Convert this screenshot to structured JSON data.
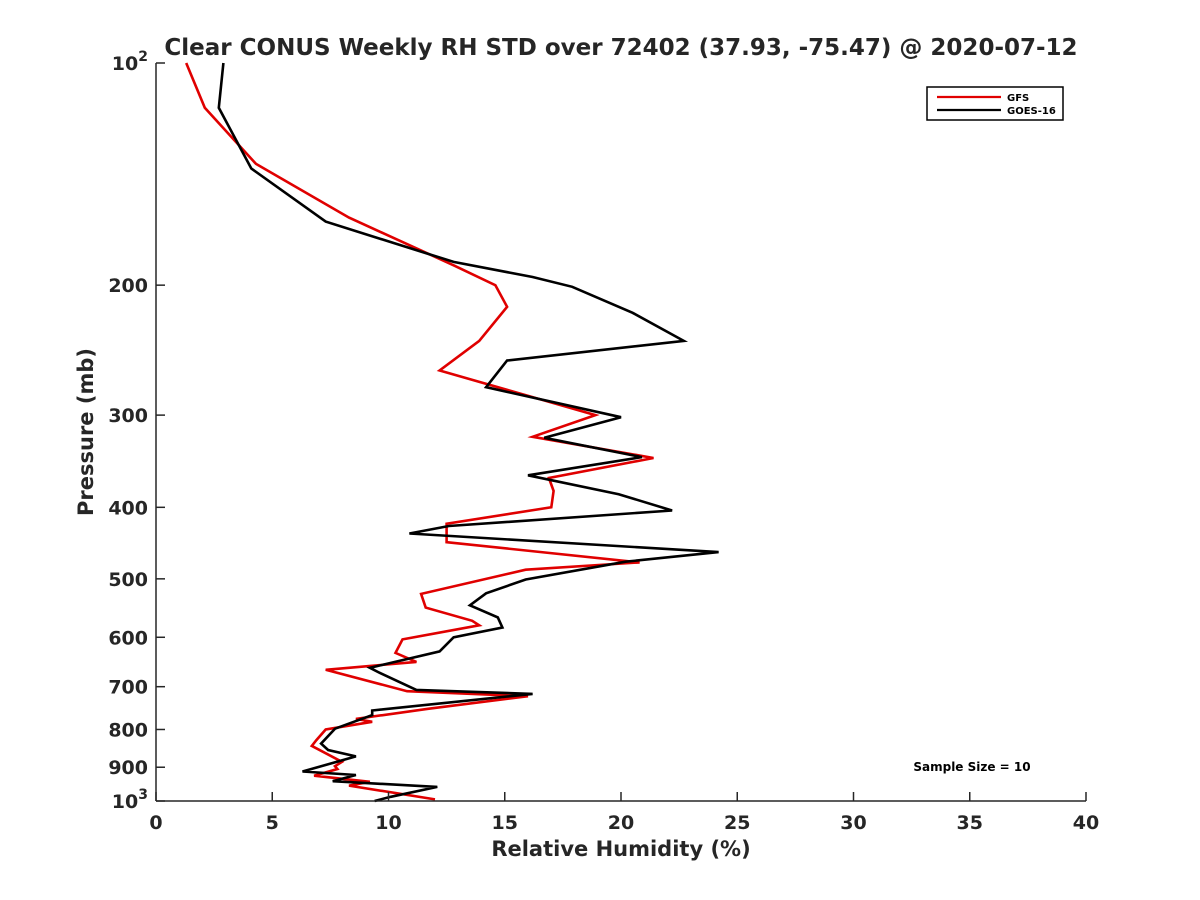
{
  "chart_data": {
    "type": "line",
    "title": "Clear CONUS Weekly RH STD over 72402 (37.93, -75.47) @ 2020-07-12",
    "xlabel": "Relative Humidity (%)",
    "ylabel": "Pressure (mb)",
    "xlim": [
      0,
      40
    ],
    "ylim": [
      100,
      1000
    ],
    "yscale": "log",
    "grid": false,
    "x_ticks": [
      0,
      5,
      10,
      15,
      20,
      25,
      30,
      35,
      40
    ],
    "x_tick_labels": [
      "0",
      "5",
      "10",
      "15",
      "20",
      "25",
      "30",
      "35",
      "40"
    ],
    "y_ticks": [
      100,
      200,
      300,
      400,
      500,
      600,
      700,
      800,
      900,
      1000
    ],
    "y_tick_labels": [
      {
        "base": "10",
        "exp": "2"
      },
      {
        "base": "200",
        "exp": ""
      },
      {
        "base": "300",
        "exp": ""
      },
      {
        "base": "400",
        "exp": ""
      },
      {
        "base": "500",
        "exp": ""
      },
      {
        "base": "600",
        "exp": ""
      },
      {
        "base": "700",
        "exp": ""
      },
      {
        "base": "800",
        "exp": ""
      },
      {
        "base": "900",
        "exp": ""
      },
      {
        "base": "10",
        "exp": "3"
      }
    ],
    "legend_position": "top-right",
    "annotation": "Sample Size = 10",
    "series": [
      {
        "name": "GFS",
        "color": "#e00000",
        "points": [
          [
            1.3,
            100
          ],
          [
            2.1,
            115
          ],
          [
            4.3,
            137
          ],
          [
            8.3,
            162
          ],
          [
            12.8,
            188
          ],
          [
            14.6,
            200
          ],
          [
            15.1,
            214
          ],
          [
            13.9,
            238
          ],
          [
            12.2,
            261
          ],
          [
            18.9,
            300
          ],
          [
            16.2,
            321
          ],
          [
            21.4,
            343
          ],
          [
            16.9,
            365
          ],
          [
            17.1,
            380
          ],
          [
            17.0,
            400
          ],
          [
            12.5,
            421
          ],
          [
            12.5,
            446
          ],
          [
            20.8,
            475
          ],
          [
            15.9,
            486
          ],
          [
            11.4,
            524
          ],
          [
            11.6,
            547
          ],
          [
            13.6,
            570
          ],
          [
            13.9,
            578
          ],
          [
            10.6,
            604
          ],
          [
            10.3,
            630
          ],
          [
            11.2,
            648
          ],
          [
            7.3,
            664
          ],
          [
            10.8,
            710
          ],
          [
            16.0,
            721
          ],
          [
            11.7,
            750
          ],
          [
            8.6,
            774
          ],
          [
            9.3,
            781
          ],
          [
            7.3,
            800
          ],
          [
            6.9,
            827
          ],
          [
            6.7,
            842
          ],
          [
            8.0,
            885
          ],
          [
            7.7,
            897
          ],
          [
            7.8,
            905
          ],
          [
            6.8,
            924
          ],
          [
            9.2,
            942
          ],
          [
            8.3,
            953
          ],
          [
            12.0,
            995
          ]
        ]
      },
      {
        "name": "GOES-16",
        "color": "#000000",
        "points": [
          [
            2.9,
            100
          ],
          [
            2.7,
            115
          ],
          [
            4.1,
            139
          ],
          [
            7.3,
            164
          ],
          [
            12.8,
            186
          ],
          [
            16.2,
            195
          ],
          [
            17.9,
            201
          ],
          [
            20.5,
            218
          ],
          [
            22.7,
            238
          ],
          [
            15.1,
            253
          ],
          [
            14.2,
            275
          ],
          [
            20.0,
            302
          ],
          [
            16.7,
            322
          ],
          [
            20.9,
            342
          ],
          [
            16.0,
            362
          ],
          [
            19.9,
            384
          ],
          [
            22.2,
            404
          ],
          [
            12.6,
            424
          ],
          [
            10.9,
            434
          ],
          [
            24.2,
            460
          ],
          [
            20.2,
            474
          ],
          [
            15.9,
            501
          ],
          [
            14.2,
            523
          ],
          [
            13.5,
            543
          ],
          [
            14.7,
            564
          ],
          [
            14.9,
            582
          ],
          [
            12.8,
            600
          ],
          [
            12.2,
            627
          ],
          [
            9.2,
            660
          ],
          [
            9.6,
            670
          ],
          [
            11.2,
            707
          ],
          [
            16.2,
            716
          ],
          [
            9.3,
            754
          ],
          [
            9.3,
            765
          ],
          [
            7.7,
            798
          ],
          [
            7.1,
            836
          ],
          [
            7.4,
            853
          ],
          [
            8.6,
            870
          ],
          [
            6.3,
            912
          ],
          [
            8.6,
            922
          ],
          [
            7.6,
            940
          ],
          [
            12.1,
            957
          ],
          [
            10.1,
            987
          ],
          [
            9.4,
            1000
          ]
        ]
      }
    ]
  }
}
